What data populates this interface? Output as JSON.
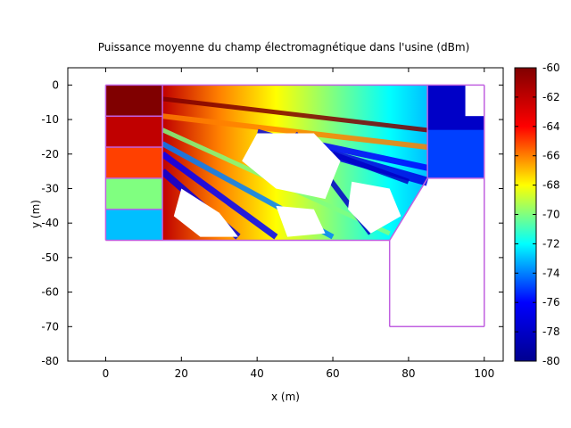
{
  "chart_data": {
    "type": "heatmap",
    "title": "Puissance moyenne du champ électromagnétique dans l'usine (dBm)",
    "xlabel": "x (m)",
    "ylabel": "y (m)",
    "xlim": [
      -10,
      105
    ],
    "ylim": [
      -80,
      5
    ],
    "xticks": [
      0,
      20,
      40,
      60,
      80,
      100
    ],
    "yticks": [
      0,
      -10,
      -20,
      -30,
      -40,
      -50,
      -60,
      -70,
      -80
    ],
    "colorbar": {
      "min": -80,
      "max": -60,
      "ticks": [
        -60,
        -62,
        -64,
        -66,
        -68,
        -70,
        -72,
        -74,
        -76,
        -78,
        -80
      ],
      "colormap": [
        "#00008f",
        "#0000ff",
        "#00ffff",
        "#ffff00",
        "#ff0000",
        "#800000"
      ]
    },
    "rooms": [
      {
        "name": "room-1",
        "x0": 0,
        "y0": 0,
        "x1": 15,
        "y1": -9,
        "value": -60
      },
      {
        "name": "room-2",
        "x0": 0,
        "y0": -9,
        "x1": 15,
        "y1": -18,
        "value": -62
      },
      {
        "name": "room-3",
        "x0": 0,
        "y0": -18,
        "x1": 15,
        "y1": -27,
        "value": -65
      },
      {
        "name": "room-4",
        "x0": 0,
        "y0": -27,
        "x1": 15,
        "y1": -36,
        "value": -70
      },
      {
        "name": "room-5",
        "x0": 0,
        "y0": -36,
        "x1": 15,
        "y1": -45,
        "value": -73
      }
    ],
    "hall_gradient": [
      {
        "x": 15,
        "value": -62
      },
      {
        "x": 30,
        "value": -66
      },
      {
        "x": 45,
        "value": -68
      },
      {
        "x": 60,
        "value": -70
      },
      {
        "x": 75,
        "value": -72
      },
      {
        "x": 85,
        "value": -73
      }
    ],
    "back_room": {
      "x0": 85,
      "y0": 0,
      "x1": 100,
      "y1": -27,
      "value": -78
    },
    "empty_region": {
      "x0": 75,
      "y0": -45,
      "x1": 100,
      "y1": -70
    },
    "walls_color": "#c060e0"
  }
}
